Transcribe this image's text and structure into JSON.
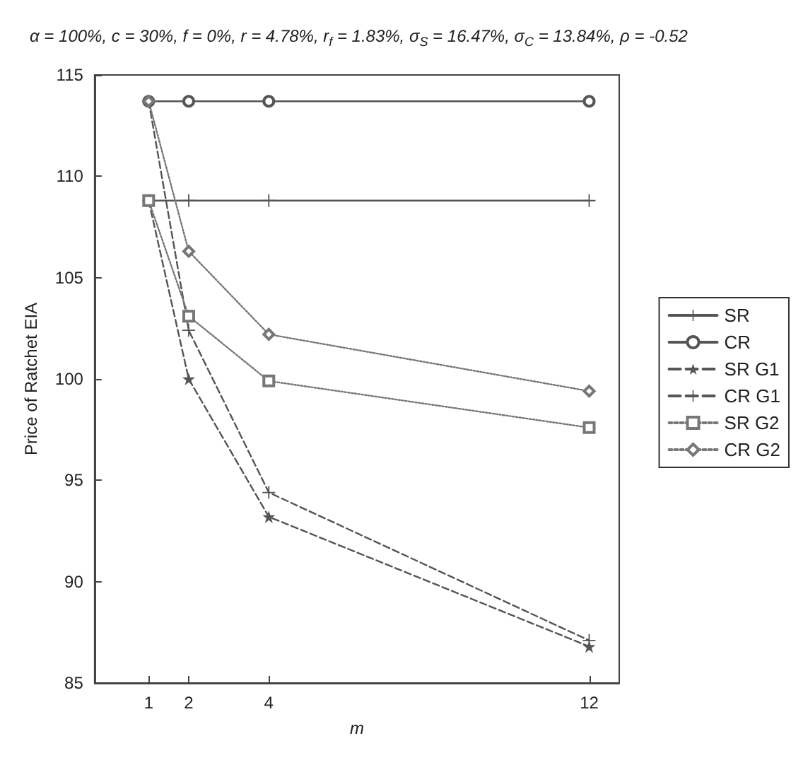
{
  "chart_data": {
    "type": "line",
    "title": "α = 100%, c = 30%, f = 0%, r = 4.78%, r$_{f}$ = 1.83%, σ$_{S}$ = 16.47%, σ$_{C}$ = 13.84%, ρ = -0.52",
    "xlabel": "m",
    "ylabel": "Price of Ratchet EIA",
    "x": [
      1,
      2,
      4,
      12
    ],
    "xlim": [
      -0.35,
      12.75
    ],
    "xticks": [
      1,
      2,
      4,
      12
    ],
    "ylim": [
      85,
      115
    ],
    "yticks": [
      85,
      90,
      95,
      100,
      105,
      110,
      115
    ],
    "grid": false,
    "legend": "right",
    "series": [
      {
        "name": "SR",
        "color": "#555555",
        "marker": "cross",
        "line_style": "solid",
        "values": [
          108.8,
          108.8,
          108.8,
          108.8
        ]
      },
      {
        "name": "CR",
        "color": "#555555",
        "marker": "circle",
        "line_style": "solid",
        "values": [
          113.7,
          113.7,
          113.7,
          113.7
        ]
      },
      {
        "name": "SR G1",
        "color": "#555555",
        "marker": "star",
        "line_style": "dashed",
        "values": [
          108.8,
          100.0,
          93.2,
          86.8
        ]
      },
      {
        "name": "CR G1",
        "color": "#555555",
        "marker": "cross",
        "line_style": "dashed",
        "values": [
          113.7,
          102.4,
          94.4,
          87.1
        ]
      },
      {
        "name": "SR G2",
        "color": "#777777",
        "marker": "square",
        "line_style": "dotted",
        "values": [
          108.8,
          103.1,
          99.9,
          97.6
        ]
      },
      {
        "name": "CR G2",
        "color": "#777777",
        "marker": "diamond",
        "line_style": "dotted",
        "values": [
          113.7,
          106.3,
          102.2,
          99.4
        ]
      }
    ]
  }
}
